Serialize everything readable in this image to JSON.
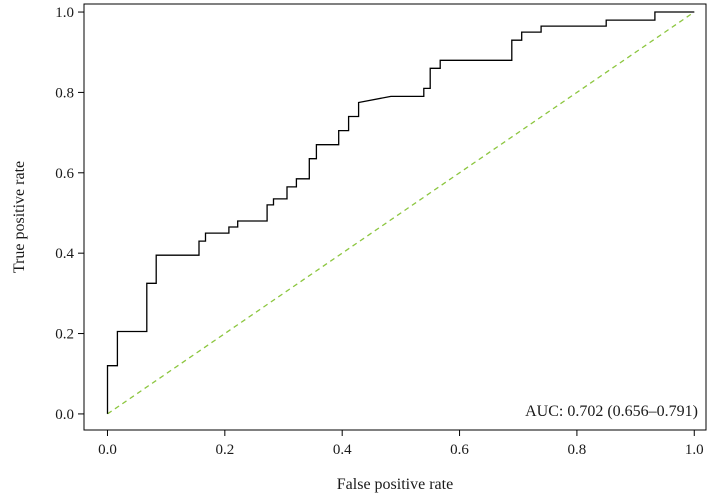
{
  "chart_data": {
    "type": "line",
    "xlabel": "False positive rate",
    "ylabel": "True positive rate",
    "xlim": [
      -0.04,
      1.02
    ],
    "ylim": [
      -0.04,
      1.02
    ],
    "x_ticks": [
      0.0,
      0.2,
      0.4,
      0.6,
      0.8,
      1.0
    ],
    "y_ticks": [
      0.0,
      0.2,
      0.4,
      0.6,
      0.8,
      1.0
    ],
    "x_tick_labels": [
      "0.0",
      "0.2",
      "0.4",
      "0.6",
      "0.8",
      "1.0"
    ],
    "y_tick_labels": [
      "0.0",
      "0.2",
      "0.4",
      "0.6",
      "0.8",
      "1.0"
    ],
    "grid": false,
    "annotation": "AUC: 0.702 (0.656–0.791)",
    "colors": {
      "roc": "#000000",
      "reference": "#8cc63f"
    },
    "series": [
      {
        "style": "step",
        "x": [
          0.0,
          0.0,
          0.005,
          0.005,
          0.017,
          0.017,
          0.067,
          0.067,
          0.083,
          0.083,
          0.156,
          0.156,
          0.167,
          0.167,
          0.178,
          0.178,
          0.207,
          0.207,
          0.222,
          0.222,
          0.272,
          0.272,
          0.283,
          0.283,
          0.306,
          0.306,
          0.322,
          0.322,
          0.344,
          0.344,
          0.356,
          0.356,
          0.394,
          0.394,
          0.411,
          0.411,
          0.428,
          0.428,
          0.483,
          0.483,
          0.539,
          0.539,
          0.55,
          0.55,
          0.567,
          0.567,
          0.689,
          0.689,
          0.706,
          0.706,
          0.739,
          0.739,
          0.85,
          0.85,
          0.933,
          0.933,
          1.0
        ],
        "y": [
          0.0,
          0.12,
          0.12,
          0.12,
          0.12,
          0.205,
          0.205,
          0.325,
          0.325,
          0.395,
          0.395,
          0.43,
          0.43,
          0.45,
          0.45,
          0.45,
          0.45,
          0.465,
          0.465,
          0.48,
          0.48,
          0.52,
          0.52,
          0.535,
          0.535,
          0.565,
          0.565,
          0.585,
          0.585,
          0.635,
          0.635,
          0.67,
          0.67,
          0.705,
          0.705,
          0.74,
          0.74,
          0.775,
          0.79,
          0.79,
          0.79,
          0.81,
          0.81,
          0.86,
          0.86,
          0.88,
          0.88,
          0.93,
          0.93,
          0.95,
          0.95,
          0.965,
          0.965,
          0.98,
          0.98,
          1.0,
          1.0
        ]
      },
      {
        "style": "dashed",
        "x": [
          0.0,
          1.0
        ],
        "y": [
          0.0,
          1.0
        ]
      }
    ]
  }
}
